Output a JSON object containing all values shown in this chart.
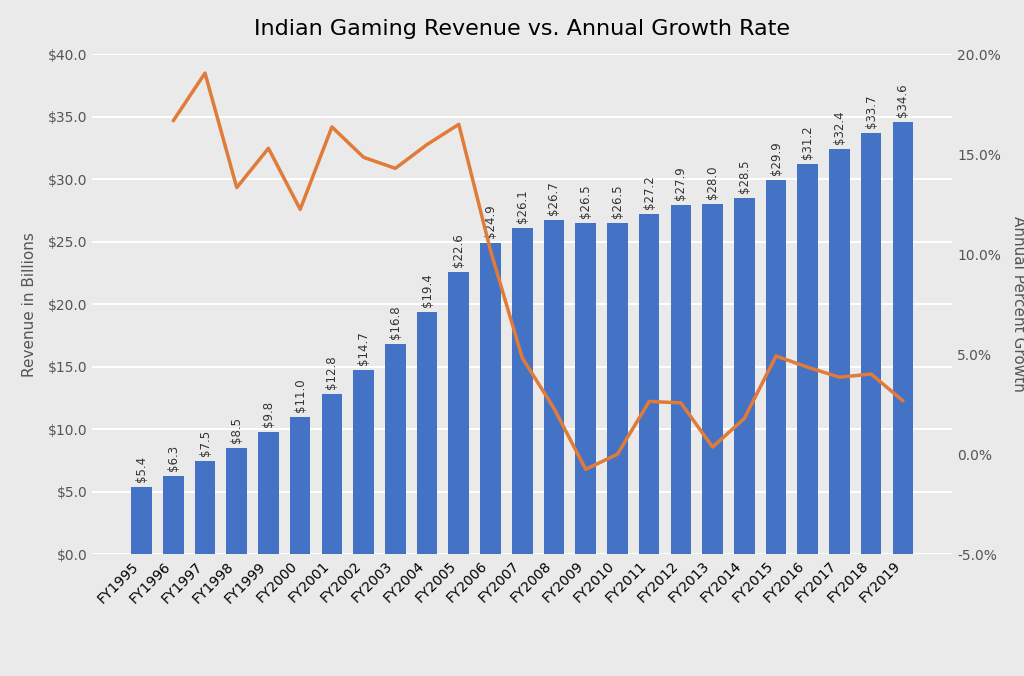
{
  "title": "Indian Gaming Revenue vs. Annual Growth Rate",
  "years": [
    "FY1995",
    "FY1996",
    "FY1997",
    "FY1998",
    "FY1999",
    "FY2000",
    "FY2001",
    "FY2002",
    "FY2003",
    "FY2004",
    "FY2005",
    "FY2006",
    "FY2007",
    "FY2008",
    "FY2009",
    "FY2010",
    "FY2011",
    "FY2012",
    "FY2013",
    "FY2014",
    "FY2015",
    "FY2016",
    "FY2017",
    "FY2018",
    "FY2019"
  ],
  "revenue": [
    5.4,
    6.3,
    7.5,
    8.5,
    9.8,
    11.0,
    12.8,
    14.7,
    16.8,
    19.4,
    22.6,
    24.9,
    26.1,
    26.7,
    26.5,
    26.5,
    27.2,
    27.9,
    28.0,
    28.5,
    29.9,
    31.2,
    32.4,
    33.7,
    34.6
  ],
  "revenue_labels": [
    "$5.4",
    "$6.3",
    "$7.5",
    "$8.5",
    "$9.8",
    "$11.0",
    "$12.8",
    "$14.7",
    "$16.8",
    "$19.4",
    "$22.6",
    "$24.9",
    "$26.1",
    "$26.7",
    "$26.5",
    "$26.5",
    "$27.2",
    "$27.9",
    "$28.0",
    "$28.5",
    "$29.9",
    "$31.2",
    "$32.4",
    "$33.7",
    "$34.6"
  ],
  "growth_rate": [
    null,
    16.67,
    19.05,
    13.33,
    15.29,
    12.24,
    16.36,
    14.84,
    14.29,
    15.48,
    16.49,
    10.18,
    4.82,
    2.3,
    -0.75,
    0.0,
    2.64,
    2.57,
    0.36,
    1.79,
    4.91,
    4.35,
    3.85,
    4.01,
    2.67
  ],
  "bar_color": "#4472C4",
  "line_color": "#E07B39",
  "ylabel_left": "Revenue in Billions",
  "ylabel_right": "Annual Percent Growth",
  "ylim_left": [
    0,
    40
  ],
  "ylim_right": [
    -5,
    20
  ],
  "yticks_left": [
    0,
    5,
    10,
    15,
    20,
    25,
    30,
    35,
    40
  ],
  "yticks_right": [
    -5,
    0,
    5,
    10,
    15,
    20
  ],
  "background_color": "#EAEAEA",
  "plot_bg_color": "#EAEAEA",
  "grid_color": "#FFFFFF",
  "title_fontsize": 16,
  "axis_label_fontsize": 11,
  "tick_fontsize": 10,
  "bar_label_fontsize": 8.5
}
